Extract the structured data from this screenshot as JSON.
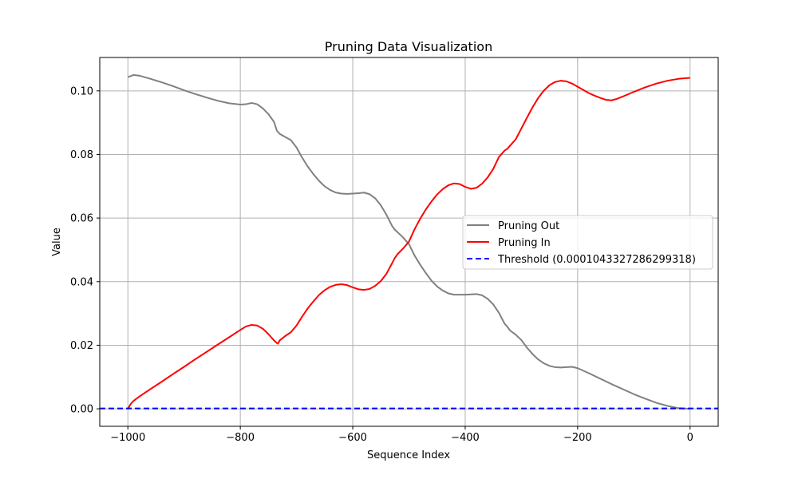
{
  "chart_data": {
    "type": "line",
    "title": "Pruning Data Visualization",
    "xlabel": "Sequence Index",
    "ylabel": "Value",
    "xlim": [
      -1050,
      50
    ],
    "ylim": [
      -0.0055,
      0.1105
    ],
    "xticks": [
      -1000,
      -800,
      -600,
      -400,
      -200,
      0
    ],
    "xtick_labels": [
      "−1000",
      "−800",
      "−600",
      "−400",
      "−200",
      "0"
    ],
    "yticks": [
      0.0,
      0.02,
      0.04,
      0.06,
      0.08,
      0.1
    ],
    "ytick_labels": [
      "0.00",
      "0.02",
      "0.04",
      "0.06",
      "0.08",
      "0.10"
    ],
    "grid": true,
    "legend_position": "center-right",
    "series": [
      {
        "name": "Pruning Out",
        "color": "#808080",
        "linestyle": "solid",
        "x": [
          -1000,
          -990,
          -980,
          -960,
          -940,
          -920,
          -900,
          -880,
          -860,
          -840,
          -820,
          -800,
          -790,
          -780,
          -770,
          -760,
          -750,
          -740,
          -735,
          -730,
          -720,
          -710,
          -700,
          -690,
          -680,
          -670,
          -660,
          -650,
          -640,
          -630,
          -620,
          -610,
          -600,
          -590,
          -580,
          -570,
          -560,
          -550,
          -540,
          -530,
          -525,
          -520,
          -510,
          -500,
          -490,
          -480,
          -470,
          -460,
          -450,
          -440,
          -430,
          -420,
          -410,
          -400,
          -390,
          -380,
          -370,
          -360,
          -350,
          -340,
          -330,
          -325,
          -320,
          -310,
          -300,
          -290,
          -280,
          -270,
          -260,
          -250,
          -240,
          -230,
          -220,
          -210,
          -200,
          -180,
          -160,
          -140,
          -120,
          -100,
          -80,
          -60,
          -40,
          -20,
          0
        ],
        "values": [
          0.1043,
          0.105,
          0.1048,
          0.1038,
          0.1027,
          0.1015,
          0.1002,
          0.099,
          0.0979,
          0.0969,
          0.0961,
          0.0957,
          0.0958,
          0.0962,
          0.0958,
          0.0945,
          0.0927,
          0.0902,
          0.0875,
          0.0865,
          0.0855,
          0.0845,
          0.0822,
          0.079,
          0.0762,
          0.0738,
          0.0717,
          0.07,
          0.0688,
          0.068,
          0.0677,
          0.0676,
          0.0677,
          0.0678,
          0.068,
          0.0675,
          0.0662,
          0.064,
          0.061,
          0.0575,
          0.0563,
          0.0555,
          0.0538,
          0.0518,
          0.0482,
          0.0453,
          0.0427,
          0.0403,
          0.0385,
          0.0372,
          0.0363,
          0.0359,
          0.0359,
          0.0359,
          0.036,
          0.0361,
          0.0357,
          0.0346,
          0.0328,
          0.0302,
          0.0268,
          0.0258,
          0.0246,
          0.0233,
          0.0216,
          0.0192,
          0.0172,
          0.0155,
          0.0143,
          0.0135,
          0.0131,
          0.013,
          0.0131,
          0.0132,
          0.0128,
          0.0112,
          0.0095,
          0.0078,
          0.0062,
          0.0046,
          0.0032,
          0.0019,
          0.0009,
          0.0002,
          0.0
        ]
      },
      {
        "name": "Pruning In",
        "color": "#ff0000",
        "linestyle": "solid",
        "x": [
          -1000,
          -995,
          -990,
          -980,
          -960,
          -940,
          -920,
          -900,
          -880,
          -860,
          -840,
          -820,
          -800,
          -790,
          -780,
          -770,
          -760,
          -750,
          -740,
          -735,
          -733,
          -730,
          -720,
          -710,
          -700,
          -690,
          -680,
          -670,
          -660,
          -650,
          -640,
          -630,
          -620,
          -610,
          -600,
          -590,
          -580,
          -570,
          -560,
          -550,
          -540,
          -530,
          -525,
          -520,
          -510,
          -500,
          -490,
          -480,
          -470,
          -460,
          -450,
          -440,
          -430,
          -420,
          -410,
          -400,
          -390,
          -380,
          -370,
          -360,
          -350,
          -340,
          -330,
          -325,
          -320,
          -310,
          -300,
          -290,
          -280,
          -270,
          -260,
          -250,
          -240,
          -230,
          -220,
          -210,
          -200,
          -190,
          -180,
          -170,
          -160,
          -150,
          -140,
          -130,
          -120,
          -100,
          -80,
          -60,
          -40,
          -20,
          0
        ],
        "values": [
          0.0,
          0.0015,
          0.0025,
          0.0038,
          0.0062,
          0.0085,
          0.0109,
          0.0132,
          0.0156,
          0.0179,
          0.0202,
          0.0225,
          0.0248,
          0.0259,
          0.0264,
          0.0262,
          0.0252,
          0.0235,
          0.0215,
          0.0207,
          0.0205,
          0.0215,
          0.0229,
          0.0241,
          0.0262,
          0.029,
          0.0316,
          0.0338,
          0.0358,
          0.0373,
          0.0384,
          0.039,
          0.0392,
          0.0389,
          0.0382,
          0.0376,
          0.0374,
          0.0377,
          0.0387,
          0.0402,
          0.0425,
          0.0458,
          0.0475,
          0.0487,
          0.0505,
          0.0526,
          0.0565,
          0.0598,
          0.0627,
          0.0652,
          0.0674,
          0.0691,
          0.0703,
          0.0709,
          0.0707,
          0.0698,
          0.0692,
          0.0695,
          0.0708,
          0.0728,
          0.0755,
          0.0792,
          0.0812,
          0.0818,
          0.0828,
          0.0848,
          0.0882,
          0.0916,
          0.0949,
          0.0978,
          0.1001,
          0.1018,
          0.1028,
          0.1032,
          0.103,
          0.1023,
          0.1013,
          0.1003,
          0.0993,
          0.0985,
          0.0978,
          0.0972,
          0.097,
          0.0975,
          0.0982,
          0.0997,
          0.1011,
          0.1023,
          0.1032,
          0.1038,
          0.1041
        ]
      },
      {
        "name": "Threshold (0.0001043327286299318)",
        "color": "#0000ff",
        "linestyle": "dashed",
        "x": [
          -1050,
          50
        ],
        "values": [
          0.0001043327286299318,
          0.0001043327286299318
        ]
      }
    ]
  }
}
